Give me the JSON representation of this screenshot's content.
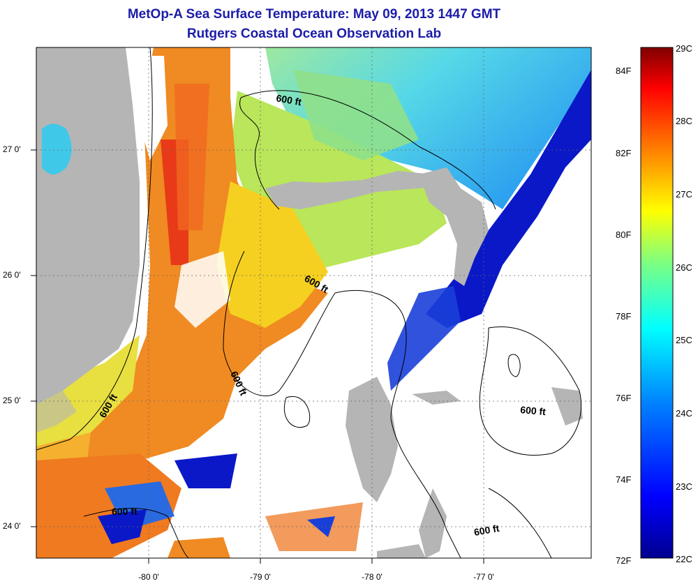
{
  "title": "MetOp-A Sea Surface Temperature:  May 09, 2013 1447 GMT",
  "subtitle": "Rutgers Coastal Ocean Observation Lab",
  "map": {
    "lat_ticks": [
      "27 0'",
      "26 0'",
      "25 0'",
      "24 0'"
    ],
    "lon_ticks": [
      "-80 0'",
      "-79 0'",
      "-78 0'",
      "-77 0'"
    ],
    "contour_labels": [
      "600 ft",
      "600 ft",
      "600 ft",
      "600 ft",
      "600 ft",
      "600 ft"
    ]
  },
  "colorbar": {
    "celsius_labels": [
      "29C",
      "28C",
      "27C",
      "26C",
      "25C",
      "24C",
      "23C",
      "22C"
    ],
    "fahrenheit_labels": [
      "84F",
      "82F",
      "80F",
      "78F",
      "76F",
      "74F",
      "72F"
    ],
    "colors": [
      "#00008f",
      "#0000ff",
      "#007fff",
      "#00ffff",
      "#7fff7f",
      "#ffff00",
      "#ff7f00",
      "#ff0000",
      "#7f0000"
    ]
  }
}
